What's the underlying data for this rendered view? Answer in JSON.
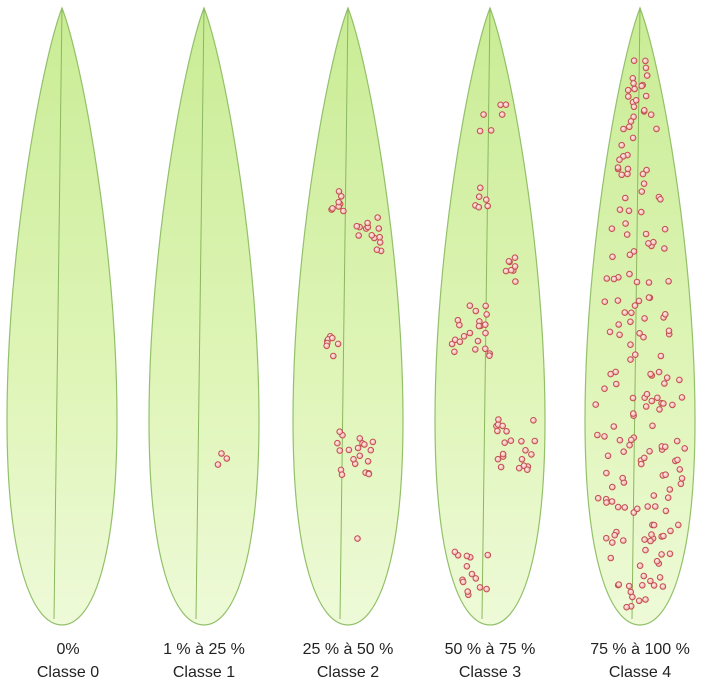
{
  "leaves": [
    {
      "percent": "0%",
      "class": "Classe 0"
    },
    {
      "percent": "1 % à 25 %",
      "class": "Classe 1"
    },
    {
      "percent": "25 % à 50 %",
      "class": "Classe 2"
    },
    {
      "percent": "50 % à 75 %",
      "class": "Classe 3"
    },
    {
      "percent": "75 % à 100 %",
      "class": "Classe 4"
    }
  ]
}
